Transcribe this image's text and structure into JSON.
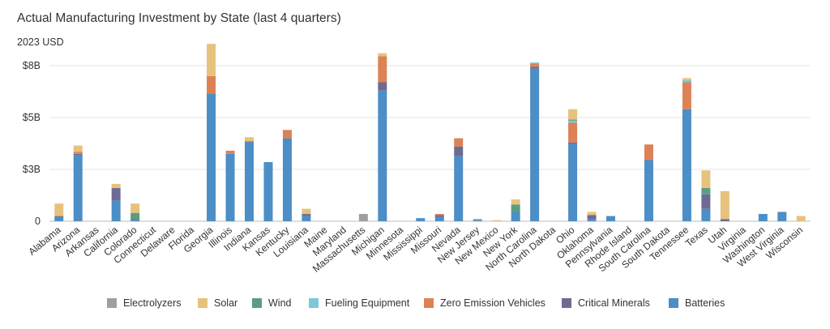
{
  "title": "Actual Manufacturing Investment by State (last 4 quarters)",
  "subtitle": "2023 USD",
  "chart_data": {
    "type": "bar",
    "stacked": true,
    "title": "Actual Manufacturing Investment by State (last 4 quarters)",
    "ylabel": "2023 USD",
    "xlabel": "",
    "ylim": [
      0,
      7.5
    ],
    "yticks": [
      0,
      2.5,
      5,
      7.5
    ],
    "ytick_labels": [
      "0",
      "$3B",
      "$5B",
      "$8B"
    ],
    "categories": [
      "Alabama",
      "Arizona",
      "Arkansas",
      "California",
      "Colorado",
      "Connecticut",
      "Delaware",
      "Florida",
      "Georgia",
      "Illinois",
      "Indiana",
      "Kansas",
      "Kentucky",
      "Louisiana",
      "Maine",
      "Maryland",
      "Massachusetts",
      "Michigan",
      "Minnesota",
      "Mississippi",
      "Missouri",
      "Nevada",
      "New Jersey",
      "New Mexico",
      "New York",
      "North Carolina",
      "North Dakota",
      "Ohio",
      "Oklahoma",
      "Pennsylvania",
      "Rhode Island",
      "South Carolina",
      "South Dakota",
      "Tennessee",
      "Texas",
      "Utah",
      "Virginia",
      "Washington",
      "West Virginia",
      "Wisconsin"
    ],
    "series": [
      {
        "name": "Batteries",
        "color": "#4c8ec6",
        "values": [
          0.2,
          3.2,
          0,
          1.0,
          0.05,
          0,
          0,
          0,
          6.15,
          3.25,
          3.8,
          2.85,
          4.0,
          0.25,
          0,
          0,
          0,
          6.3,
          0,
          0.15,
          0.2,
          3.15,
          0.05,
          0,
          0.45,
          7.35,
          0,
          3.75,
          0.1,
          0.25,
          0,
          2.95,
          0,
          5.4,
          0.6,
          0,
          0,
          0.35,
          0.45,
          0
        ]
      },
      {
        "name": "Critical Minerals",
        "color": "#6c6b93",
        "values": [
          0.05,
          0.05,
          0,
          0.6,
          0.05,
          0,
          0,
          0,
          0,
          0,
          0.05,
          0,
          0,
          0.1,
          0,
          0,
          0,
          0.4,
          0,
          0,
          0.1,
          0.45,
          0,
          0,
          0,
          0.1,
          0,
          0.05,
          0.2,
          0,
          0,
          0,
          0,
          0,
          0.7,
          0.1,
          0,
          0,
          0,
          0
        ]
      },
      {
        "name": "Zero Emission Vehicles",
        "color": "#dd8255",
        "values": [
          0,
          0.1,
          0,
          0,
          0,
          0,
          0,
          0,
          0.85,
          0.15,
          0,
          0,
          0.4,
          0,
          0,
          0,
          0,
          1.25,
          0,
          0,
          0.05,
          0.4,
          0,
          0,
          0,
          0.15,
          0,
          0.95,
          0,
          0,
          0,
          0.75,
          0,
          1.3,
          0,
          0,
          0,
          0,
          0,
          0
        ]
      },
      {
        "name": "Fueling Equipment",
        "color": "#7ac8d8",
        "values": [
          0,
          0,
          0,
          0,
          0,
          0,
          0,
          0,
          0,
          0,
          0,
          0,
          0,
          0,
          0,
          0,
          0,
          0,
          0,
          0,
          0,
          0,
          0,
          0,
          0,
          0.05,
          0,
          0.1,
          0,
          0,
          0,
          0,
          0,
          0.1,
          0,
          0,
          0,
          0,
          0,
          0
        ]
      },
      {
        "name": "Wind",
        "color": "#5a9e82",
        "values": [
          0,
          0,
          0,
          0,
          0.3,
          0,
          0,
          0,
          0,
          0,
          0,
          0,
          0,
          0,
          0,
          0,
          0,
          0,
          0,
          0,
          0,
          0,
          0.05,
          0,
          0.35,
          0,
          0,
          0.05,
          0,
          0,
          0,
          0,
          0,
          0,
          0.3,
          0,
          0,
          0,
          0,
          0
        ]
      },
      {
        "name": "Solar",
        "color": "#e7c27d",
        "values": [
          0.6,
          0.3,
          0,
          0.2,
          0.45,
          0,
          0,
          0,
          1.55,
          0,
          0.2,
          0,
          0,
          0.25,
          0,
          0,
          0,
          0.15,
          0,
          0,
          0,
          0,
          0,
          0.05,
          0.25,
          0,
          0,
          0.5,
          0.15,
          0,
          0,
          0,
          0,
          0.1,
          0.85,
          1.35,
          0,
          0,
          0,
          0.25
        ]
      },
      {
        "name": "Electrolyzers",
        "color": "#9f9f9f",
        "values": [
          0,
          0,
          0,
          0,
          0,
          0,
          0,
          0,
          0,
          0,
          0,
          0,
          0,
          0,
          0,
          0,
          0.35,
          0,
          0,
          0,
          0,
          0,
          0,
          0,
          0,
          0,
          0,
          0,
          0,
          0,
          0,
          0,
          0,
          0,
          0,
          0,
          0,
          0,
          0,
          0
        ]
      }
    ],
    "legend": {
      "position": "bottom",
      "order": [
        "Electrolyzers",
        "Solar",
        "Wind",
        "Fueling Equipment",
        "Zero Emission Vehicles",
        "Critical Minerals",
        "Batteries"
      ]
    }
  }
}
